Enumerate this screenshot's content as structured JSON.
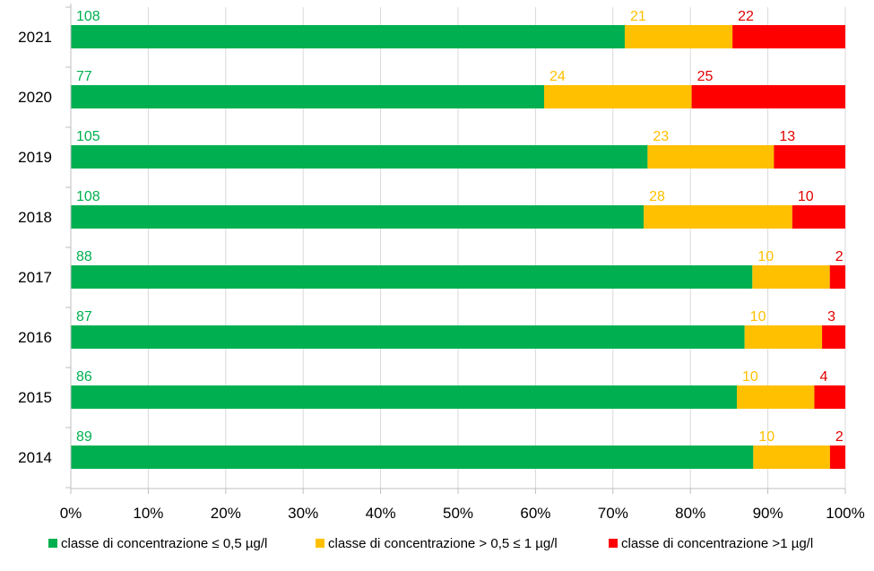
{
  "chart_data": {
    "type": "bar",
    "orientation": "horizontal",
    "stacked": "percent",
    "categories": [
      "2021",
      "2020",
      "2019",
      "2018",
      "2017",
      "2016",
      "2015",
      "2014"
    ],
    "series": [
      {
        "name": "classe di concentrazione ≤ 0,5 µg/l",
        "color": "#00B050",
        "values": [
          108,
          77,
          105,
          108,
          88,
          87,
          86,
          89
        ]
      },
      {
        "name": "classe di concentrazione > 0,5 ≤ 1 µg/l",
        "color": "#FFC000",
        "values": [
          21,
          24,
          23,
          28,
          10,
          10,
          10,
          10
        ]
      },
      {
        "name": "classe di concentrazione >1 µg/l",
        "color": "#FF0000",
        "values": [
          22,
          25,
          13,
          10,
          2,
          3,
          4,
          2
        ]
      }
    ],
    "label_colors": [
      "#00B050",
      "#FFC000",
      "#E00000"
    ],
    "x_ticks": [
      "0%",
      "10%",
      "20%",
      "30%",
      "40%",
      "50%",
      "60%",
      "70%",
      "80%",
      "90%",
      "100%"
    ],
    "xlim": [
      0,
      100
    ],
    "grid": true,
    "legend_position": "bottom",
    "title": "",
    "xlabel": "",
    "ylabel": ""
  }
}
